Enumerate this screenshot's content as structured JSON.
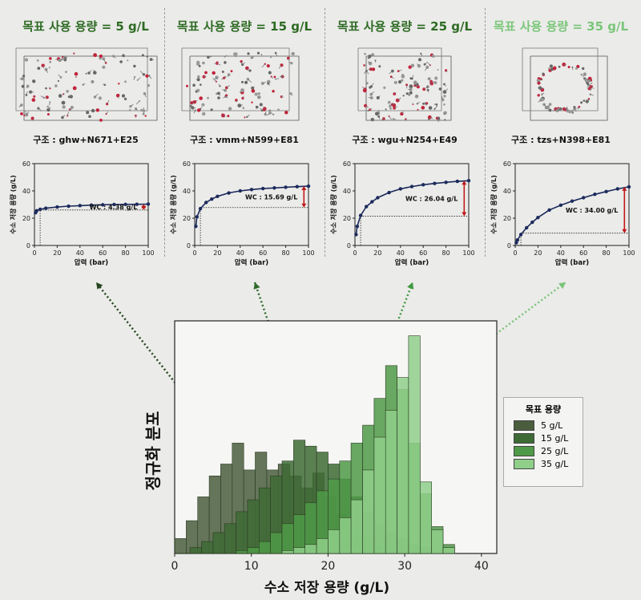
{
  "panels": [
    {
      "title": "목표 사용 용량 = 5 g/L",
      "color": "#2e6b24",
      "structure": "구조 : ghw+N671+E25",
      "wc_label": "WC : 4.38 g/L",
      "isotherm": {
        "x": [
          1,
          2,
          5,
          10,
          20,
          30,
          40,
          50,
          60,
          70,
          80,
          90,
          100
        ],
        "y": [
          24,
          25.5,
          26.5,
          27.3,
          28.2,
          28.8,
          29.2,
          29.6,
          29.8,
          30,
          30.1,
          30.2,
          30.3
        ]
      },
      "ref_y": 26.0,
      "arrow_from": 26.0,
      "arrow_to": 30.3
    },
    {
      "title": "목표 사용 용량 = 15 g/L",
      "color": "#2e6b24",
      "structure": "구조 : vmm+N599+E81",
      "wc_label": "WC : 15.69 g/L",
      "isotherm": {
        "x": [
          1,
          2,
          5,
          10,
          15,
          20,
          30,
          40,
          50,
          60,
          70,
          80,
          90,
          100
        ],
        "y": [
          14,
          21,
          27,
          31.5,
          34,
          36,
          38.5,
          40,
          41,
          41.7,
          42.2,
          42.7,
          43.1,
          43.5
        ]
      },
      "ref_y": 27.8,
      "arrow_from": 27.8,
      "arrow_to": 43.5
    },
    {
      "title": "목표 사용 용량 = 25 g/L",
      "color": "#2e6b24",
      "structure": "구조 : wgu+N254+E49",
      "wc_label": "WC : 26.04 g/L",
      "isotherm": {
        "x": [
          1,
          2,
          5,
          10,
          15,
          20,
          30,
          40,
          50,
          60,
          70,
          80,
          90,
          100
        ],
        "y": [
          8,
          14,
          22,
          28.5,
          32,
          35,
          38.8,
          41.5,
          43.2,
          44.5,
          45.5,
          46.3,
          47,
          47.5
        ]
      },
      "ref_y": 21.5,
      "arrow_from": 21.5,
      "arrow_to": 47.5
    },
    {
      "title": "목표 사용 용량 = 35 g/L",
      "color": "#7bc67b",
      "structure": "구조 : tzs+N398+E81",
      "wc_label": "WC : 34.00 g/L",
      "isotherm": {
        "x": [
          1,
          2,
          5,
          10,
          15,
          20,
          30,
          40,
          50,
          60,
          70,
          80,
          90,
          100
        ],
        "y": [
          2,
          4,
          8,
          13,
          17,
          20.5,
          26,
          29.5,
          32.5,
          35,
          37.5,
          39.5,
          41.5,
          43
        ]
      },
      "ref_y": 9.0,
      "arrow_from": 9.0,
      "arrow_to": 43
    }
  ],
  "mini_axes": {
    "xlabel": "압력 (bar)",
    "ylabel": "수소 저장 용량 (g/L)",
    "xticks": [
      0,
      20,
      40,
      60,
      80,
      100
    ],
    "yticks": [
      0,
      20,
      40,
      60
    ],
    "ylim": [
      0,
      60
    ],
    "xlim": [
      0,
      100
    ]
  },
  "arrow_colors": [
    "#24451f",
    "#2d6a2a",
    "#3f9a3f",
    "#7ac47a"
  ],
  "chart_data": {
    "type": "bar",
    "ylabel": "정규화 분포",
    "xlabel": "수소 저장 용량 (g/L)",
    "xlim": [
      0,
      42
    ],
    "xticks": [
      0,
      10,
      20,
      30,
      40
    ],
    "bin_width": 1.5,
    "legend_title": "목표 용량",
    "legend_position": "right",
    "series": [
      {
        "name": "5 g/L",
        "color": "#4a5e3d",
        "start": 0,
        "values": [
          0.05,
          0.11,
          0.19,
          0.26,
          0.3,
          0.37,
          0.28,
          0.34,
          0.28,
          0.3,
          0.26,
          0.22,
          0.27,
          0.19,
          0.13,
          0.08,
          0.05,
          0.03,
          0.01
        ]
      },
      {
        "name": "15 g/L",
        "color": "#3e6b35",
        "start": 2,
        "values": [
          0.02,
          0.04,
          0.07,
          0.1,
          0.14,
          0.18,
          0.22,
          0.26,
          0.31,
          0.38,
          0.36,
          0.34,
          0.3,
          0.25,
          0.19,
          0.14,
          0.1,
          0.07,
          0.05,
          0.03,
          0.02
        ]
      },
      {
        "name": "25 g/L",
        "color": "#4f9a48",
        "start": 8,
        "values": [
          0.01,
          0.02,
          0.04,
          0.07,
          0.1,
          0.13,
          0.17,
          0.21,
          0.25,
          0.31,
          0.37,
          0.43,
          0.52,
          0.63,
          0.55,
          0.37,
          0.2,
          0.09,
          0.03
        ]
      },
      {
        "name": "35 g/L",
        "color": "#8fcf8a",
        "start": 14,
        "values": [
          0.01,
          0.02,
          0.03,
          0.05,
          0.08,
          0.12,
          0.18,
          0.28,
          0.39,
          0.48,
          0.59,
          0.73,
          0.24,
          0.08,
          0.02
        ]
      }
    ],
    "ymax": 0.78
  }
}
